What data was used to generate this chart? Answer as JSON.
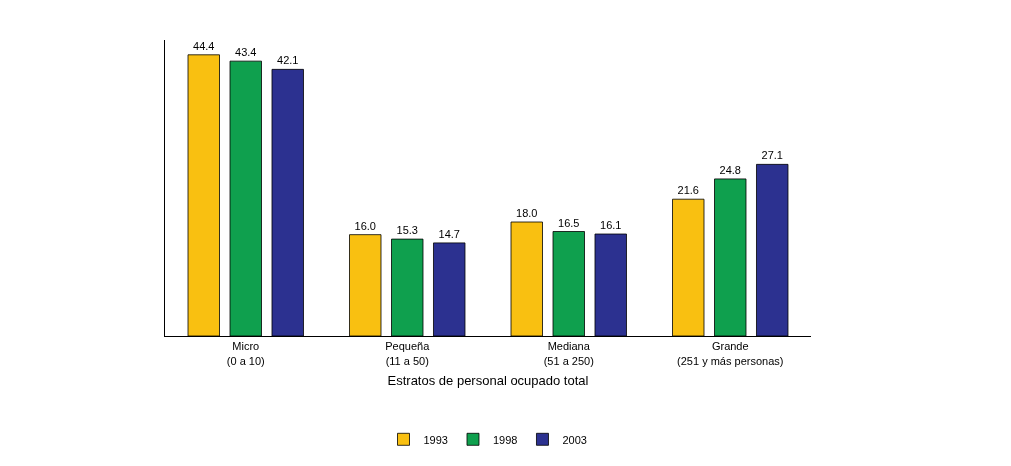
{
  "chart_data": {
    "type": "bar",
    "xlabel": "Estratos de personal ocupado total",
    "categories": [
      "Micro\n(0 a 10)",
      "Pequeña\n(11 a 50)",
      "Mediana\n(51 a 250)",
      "Grande\n(251 y más personas)"
    ],
    "series": [
      {
        "name": "1993",
        "color": "#f9c011",
        "values": [
          44.4,
          16.0,
          18.0,
          21.6
        ],
        "value_labels": [
          "44.4",
          "16.0",
          "18.0",
          "21.6"
        ]
      },
      {
        "name": "1998",
        "color": "#0fa04e",
        "values": [
          43.4,
          15.3,
          16.5,
          24.8
        ],
        "value_labels": [
          "43.4",
          "15.3",
          "16.5",
          "24.8"
        ]
      },
      {
        "name": "2003",
        "color": "#2c3190",
        "values": [
          42.1,
          14.7,
          16.1,
          27.1
        ],
        "value_labels": [
          "42.1",
          "14.7",
          "16.1",
          "27.1"
        ]
      }
    ],
    "legend": "bottom",
    "tick_labels": "x"
  }
}
